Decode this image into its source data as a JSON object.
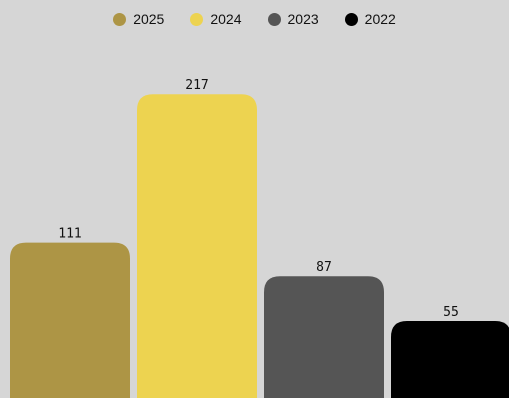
{
  "chart_data": {
    "type": "bar",
    "categories": [
      "2025",
      "2024",
      "2023",
      "2022"
    ],
    "values": [
      111,
      217,
      87,
      55
    ],
    "colors": [
      "#ad9545",
      "#edd350",
      "#555555",
      "#000000"
    ],
    "legend": {
      "position": "top-center",
      "entries": [
        "2025",
        "2024",
        "2023",
        "2022"
      ]
    },
    "data_labels": [
      "111",
      "217",
      "87",
      "55"
    ],
    "title": "",
    "xlabel": "",
    "ylabel": "",
    "grid": false,
    "background": "#d6d6d6"
  }
}
